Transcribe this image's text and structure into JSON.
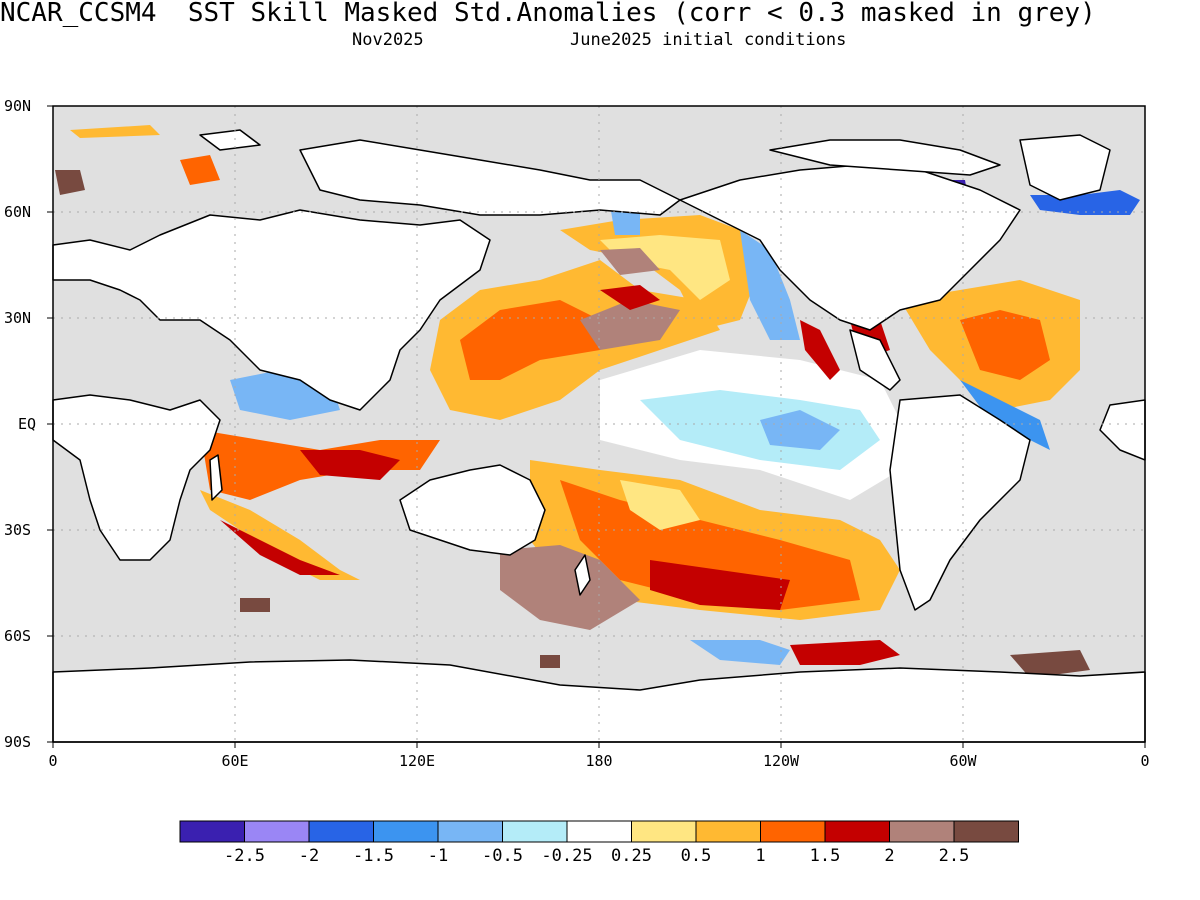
{
  "header": {
    "title": "NCAR_CCSM4  SST Skill Masked Std.Anomalies (corr < 0.3 masked in grey)",
    "valid_month": "Nov2025",
    "init": "June2025 initial conditions"
  },
  "axes": {
    "lat_labels": [
      "90N",
      "60N",
      "30N",
      "EQ",
      "30S",
      "60S",
      "90S"
    ],
    "lon_labels": [
      "0",
      "60E",
      "120E",
      "180",
      "120W",
      "60W",
      "0"
    ]
  },
  "colorbar": {
    "colors": [
      "#3a20b0",
      "#9a86f5",
      "#2864e6",
      "#3c94f0",
      "#78b6f5",
      "#b4ecf8",
      "#ffffff",
      "#ffe682",
      "#ffb932",
      "#ff6400",
      "#c40000",
      "#b0827a",
      "#784a40"
    ],
    "labels": [
      "-2.5",
      "-2",
      "-1.5",
      "-1",
      "-0.5",
      "-0.25",
      "0.25",
      "0.5",
      "1",
      "1.5",
      "2",
      "2.5"
    ]
  },
  "map": {
    "mask_color": "#e0e0e0",
    "land_color": "#ffffff",
    "coast_color": "#000000"
  }
}
